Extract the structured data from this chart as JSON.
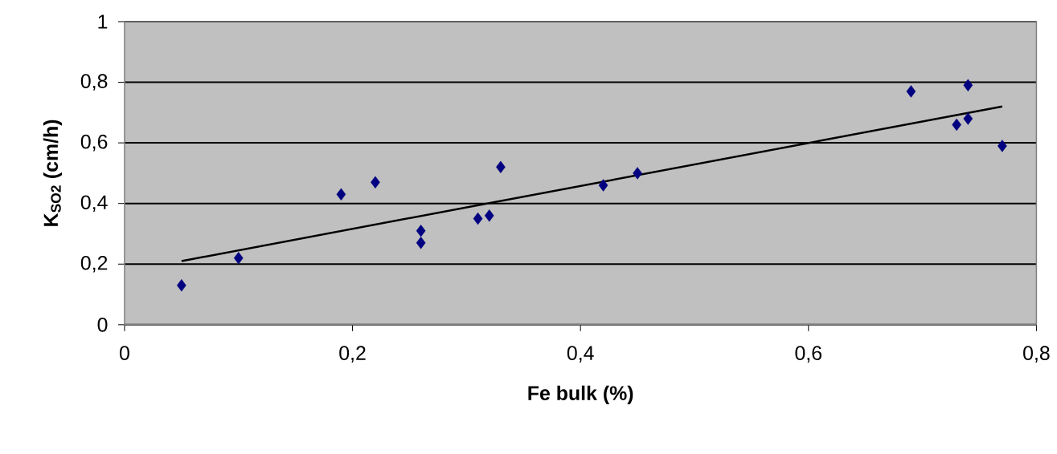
{
  "chart_data": {
    "type": "scatter",
    "xlabel": "Fe bulk (%)",
    "ylabel": "K$_{SO2}$ (cm/h)",
    "xlim": [
      0,
      0.8
    ],
    "ylim": [
      0,
      1
    ],
    "xticks": [
      0,
      {
        "value": 0.2,
        "label": "0,2"
      },
      {
        "value": 0.4,
        "label": "0,4"
      },
      {
        "value": 0.6,
        "label": "0,6"
      },
      {
        "value": 0.8,
        "label": "0,8"
      }
    ],
    "yticks": [
      0,
      {
        "value": 0.2,
        "label": "0,2"
      },
      {
        "value": 0.4,
        "label": "0,4"
      },
      {
        "value": 0.6,
        "label": "0,6"
      },
      {
        "value": 0.8,
        "label": "0,8"
      },
      1
    ],
    "grid": "y",
    "marker": "diamond",
    "series": [
      {
        "color": "#000080",
        "x": [
          0.05,
          0.1,
          0.19,
          0.22,
          0.26,
          0.26,
          0.31,
          0.32,
          0.33,
          0.42,
          0.45,
          0.69,
          0.73,
          0.74,
          0.74,
          0.77
        ],
        "values": [
          0.13,
          0.22,
          0.43,
          0.47,
          0.31,
          0.27,
          0.35,
          0.36,
          0.52,
          0.46,
          0.5,
          0.77,
          0.66,
          0.68,
          0.79,
          0.59
        ]
      },
      {
        "type": "line",
        "color": "#000000",
        "marker": "none",
        "line_style": "solid",
        "x": [
          0.05,
          0.77
        ],
        "values": [
          0.21,
          0.72
        ]
      }
    ]
  }
}
